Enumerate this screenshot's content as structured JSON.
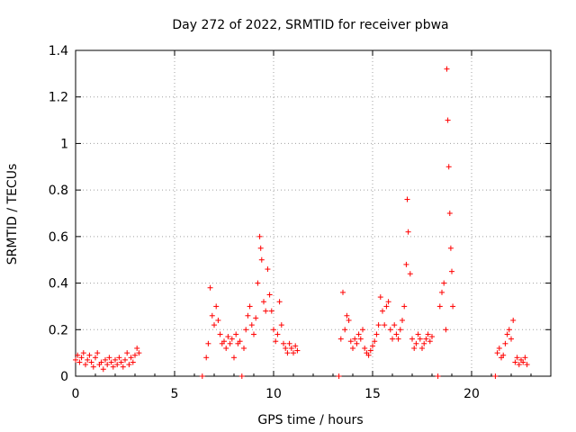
{
  "chart_data": {
    "type": "scatter",
    "title": "Day 272 of 2022, SRMTID for receiver pbwa",
    "xlabel": "GPS time / hours",
    "ylabel": "SRMTID / TECUs",
    "xlim": [
      0,
      24
    ],
    "ylim": [
      0,
      1.4
    ],
    "xticks": [
      0,
      5,
      10,
      15,
      20
    ],
    "xtick_labels": [
      "0",
      "5",
      "10",
      "15",
      "20"
    ],
    "yticks": [
      0,
      0.2,
      0.4,
      0.6,
      0.8,
      1.0,
      1.2,
      1.4
    ],
    "ytick_labels": [
      "0",
      "0.2",
      "0.4",
      "0.6",
      "0.8",
      "1",
      "1.2",
      "1.4"
    ],
    "grid": true,
    "marker": "+",
    "series": [
      {
        "name": "SRMTID",
        "color": "#ff0000",
        "points": [
          [
            0.0,
            0.07
          ],
          [
            0.1,
            0.09
          ],
          [
            0.2,
            0.06
          ],
          [
            0.3,
            0.08
          ],
          [
            0.4,
            0.1
          ],
          [
            0.5,
            0.05
          ],
          [
            0.6,
            0.07
          ],
          [
            0.7,
            0.09
          ],
          [
            0.8,
            0.06
          ],
          [
            0.9,
            0.04
          ],
          [
            1.0,
            0.08
          ],
          [
            1.1,
            0.1
          ],
          [
            1.2,
            0.05
          ],
          [
            1.3,
            0.06
          ],
          [
            1.4,
            0.03
          ],
          [
            1.5,
            0.07
          ],
          [
            1.6,
            0.05
          ],
          [
            1.7,
            0.08
          ],
          [
            1.8,
            0.06
          ],
          [
            1.9,
            0.04
          ],
          [
            2.0,
            0.07
          ],
          [
            2.1,
            0.05
          ],
          [
            2.2,
            0.08
          ],
          [
            2.3,
            0.06
          ],
          [
            2.4,
            0.04
          ],
          [
            2.5,
            0.07
          ],
          [
            2.6,
            0.1
          ],
          [
            2.7,
            0.05
          ],
          [
            2.8,
            0.08
          ],
          [
            2.9,
            0.06
          ],
          [
            3.0,
            0.09
          ],
          [
            3.1,
            0.12
          ],
          [
            3.2,
            0.1
          ],
          [
            6.4,
            0.0
          ],
          [
            6.6,
            0.08
          ],
          [
            6.7,
            0.14
          ],
          [
            6.8,
            0.38
          ],
          [
            6.9,
            0.26
          ],
          [
            7.0,
            0.22
          ],
          [
            7.1,
            0.3
          ],
          [
            7.2,
            0.24
          ],
          [
            7.3,
            0.18
          ],
          [
            7.4,
            0.14
          ],
          [
            7.5,
            0.15
          ],
          [
            7.6,
            0.12
          ],
          [
            7.7,
            0.17
          ],
          [
            7.8,
            0.14
          ],
          [
            7.9,
            0.16
          ],
          [
            8.0,
            0.08
          ],
          [
            8.1,
            0.18
          ],
          [
            8.2,
            0.14
          ],
          [
            8.3,
            0.15
          ],
          [
            8.4,
            0.0
          ],
          [
            8.5,
            0.12
          ],
          [
            8.6,
            0.2
          ],
          [
            8.7,
            0.26
          ],
          [
            8.8,
            0.3
          ],
          [
            8.9,
            0.22
          ],
          [
            9.0,
            0.18
          ],
          [
            9.1,
            0.25
          ],
          [
            9.2,
            0.4
          ],
          [
            9.3,
            0.6
          ],
          [
            9.35,
            0.55
          ],
          [
            9.4,
            0.5
          ],
          [
            9.5,
            0.32
          ],
          [
            9.6,
            0.28
          ],
          [
            9.7,
            0.46
          ],
          [
            9.8,
            0.35
          ],
          [
            9.9,
            0.28
          ],
          [
            10.0,
            0.2
          ],
          [
            10.1,
            0.15
          ],
          [
            10.2,
            0.18
          ],
          [
            10.3,
            0.32
          ],
          [
            10.4,
            0.22
          ],
          [
            10.5,
            0.14
          ],
          [
            10.6,
            0.12
          ],
          [
            10.7,
            0.1
          ],
          [
            10.8,
            0.14
          ],
          [
            10.9,
            0.12
          ],
          [
            11.0,
            0.1
          ],
          [
            11.1,
            0.13
          ],
          [
            11.2,
            0.11
          ],
          [
            13.3,
            0.0
          ],
          [
            13.4,
            0.16
          ],
          [
            13.5,
            0.36
          ],
          [
            13.6,
            0.2
          ],
          [
            13.7,
            0.26
          ],
          [
            13.8,
            0.24
          ],
          [
            13.9,
            0.15
          ],
          [
            14.0,
            0.12
          ],
          [
            14.1,
            0.16
          ],
          [
            14.2,
            0.14
          ],
          [
            14.3,
            0.18
          ],
          [
            14.4,
            0.16
          ],
          [
            14.5,
            0.2
          ],
          [
            14.6,
            0.12
          ],
          [
            14.7,
            0.1
          ],
          [
            14.8,
            0.09
          ],
          [
            14.9,
            0.11
          ],
          [
            15.0,
            0.13
          ],
          [
            15.1,
            0.15
          ],
          [
            15.2,
            0.18
          ],
          [
            15.3,
            0.22
          ],
          [
            15.4,
            0.34
          ],
          [
            15.5,
            0.28
          ],
          [
            15.6,
            0.22
          ],
          [
            15.7,
            0.3
          ],
          [
            15.8,
            0.32
          ],
          [
            15.9,
            0.2
          ],
          [
            16.0,
            0.16
          ],
          [
            16.1,
            0.22
          ],
          [
            16.2,
            0.18
          ],
          [
            16.3,
            0.16
          ],
          [
            16.4,
            0.2
          ],
          [
            16.5,
            0.24
          ],
          [
            16.6,
            0.3
          ],
          [
            16.7,
            0.48
          ],
          [
            16.75,
            0.76
          ],
          [
            16.8,
            0.62
          ],
          [
            16.9,
            0.44
          ],
          [
            17.0,
            0.16
          ],
          [
            17.1,
            0.12
          ],
          [
            17.2,
            0.14
          ],
          [
            17.3,
            0.18
          ],
          [
            17.4,
            0.16
          ],
          [
            17.5,
            0.12
          ],
          [
            17.6,
            0.14
          ],
          [
            17.7,
            0.16
          ],
          [
            17.8,
            0.18
          ],
          [
            17.9,
            0.15
          ],
          [
            18.0,
            0.17
          ],
          [
            18.3,
            0.0
          ],
          [
            18.4,
            0.3
          ],
          [
            18.5,
            0.36
          ],
          [
            18.6,
            0.4
          ],
          [
            18.7,
            0.2
          ],
          [
            18.75,
            1.32
          ],
          [
            18.8,
            1.1
          ],
          [
            18.85,
            0.9
          ],
          [
            18.9,
            0.7
          ],
          [
            18.95,
            0.55
          ],
          [
            19.0,
            0.45
          ],
          [
            19.05,
            0.3
          ],
          [
            21.2,
            0.0
          ],
          [
            21.3,
            0.1
          ],
          [
            21.4,
            0.12
          ],
          [
            21.5,
            0.08
          ],
          [
            21.6,
            0.09
          ],
          [
            21.7,
            0.14
          ],
          [
            21.8,
            0.18
          ],
          [
            21.9,
            0.2
          ],
          [
            22.0,
            0.16
          ],
          [
            22.1,
            0.24
          ],
          [
            22.2,
            0.06
          ],
          [
            22.3,
            0.08
          ],
          [
            22.4,
            0.05
          ],
          [
            22.5,
            0.07
          ],
          [
            22.6,
            0.06
          ],
          [
            22.7,
            0.08
          ],
          [
            22.8,
            0.05
          ]
        ]
      }
    ]
  }
}
